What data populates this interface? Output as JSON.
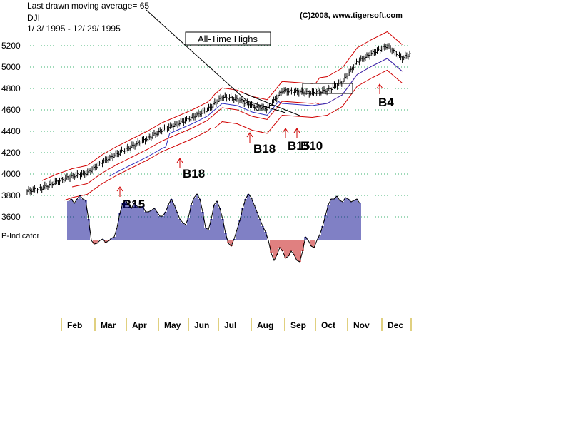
{
  "header": {
    "ma_label": "Last drawn moving average= 65",
    "index_name": "DJI",
    "date_range": "1/ 3/ 1995 - 12/ 29/ 1995",
    "copyright": "(C)2008, www.tigersoft.com",
    "badge": "All-Time Highs"
  },
  "chart_data": {
    "type": "ohlc",
    "title": "DJI",
    "ylim": [
      3700,
      5350
    ],
    "y_ticks": [
      3600,
      3800,
      4000,
      4200,
      4400,
      4600,
      4800,
      5000,
      5200
    ],
    "months": [
      "Feb",
      "Mar",
      "Apr",
      "May",
      "Jun",
      "Jul",
      "Aug",
      "Sep",
      "Oct",
      "Nov",
      "Dec"
    ],
    "moving_average_period": 65,
    "close_series": {
      "week": [
        1,
        3,
        5,
        7,
        9,
        11,
        13,
        15,
        17,
        19,
        21,
        23,
        25,
        27,
        29,
        31,
        33,
        35,
        37,
        39,
        41,
        43,
        45,
        47,
        49,
        51,
        52
      ],
      "close": [
        3840,
        3870,
        3930,
        3980,
        4010,
        4110,
        4190,
        4260,
        4330,
        4410,
        4470,
        4530,
        4600,
        4720,
        4700,
        4640,
        4610,
        4780,
        4770,
        4760,
        4780,
        4860,
        5050,
        5130,
        5200,
        5080,
        5120
      ]
    },
    "signals": [
      {
        "label": "B15",
        "week": 7,
        "value": 3830
      },
      {
        "label": "B18",
        "week": 12,
        "value": 4160
      },
      {
        "label": "B18",
        "week": 25,
        "value": 4520
      },
      {
        "label": "B15",
        "week": 30,
        "value": 4490
      },
      {
        "label": "B10",
        "week": 31,
        "value": 4490
      },
      {
        "label": "B4",
        "week": 43,
        "value": 4800
      }
    ],
    "indicator": {
      "name": "P-Indicator",
      "x_start": 95,
      "x_step": 4,
      "values": [
        55,
        58,
        52,
        58,
        63,
        58,
        56,
        30,
        0,
        -5,
        -4,
        0,
        2,
        -3,
        -1,
        3,
        5,
        18,
        38,
        52,
        56,
        50,
        45,
        52,
        48,
        46,
        48,
        40,
        40,
        42,
        45,
        40,
        34,
        34,
        40,
        50,
        58,
        50,
        40,
        30,
        25,
        22,
        32,
        50,
        60,
        65,
        58,
        40,
        18,
        15,
        30,
        50,
        55,
        45,
        30,
        10,
        -4,
        -8,
        2,
        15,
        28,
        45,
        58,
        65,
        60,
        50,
        40,
        30,
        20,
        12,
        0,
        -18,
        -28,
        -20,
        -10,
        -15,
        -25,
        -22,
        -15,
        -20,
        -28,
        -30,
        -15,
        5,
        0,
        -8,
        -10,
        0,
        8,
        20,
        35,
        50,
        58,
        58,
        62,
        56,
        54,
        60,
        58,
        54,
        56,
        58,
        52
      ]
    },
    "indicator_label": "P-Indicator"
  }
}
